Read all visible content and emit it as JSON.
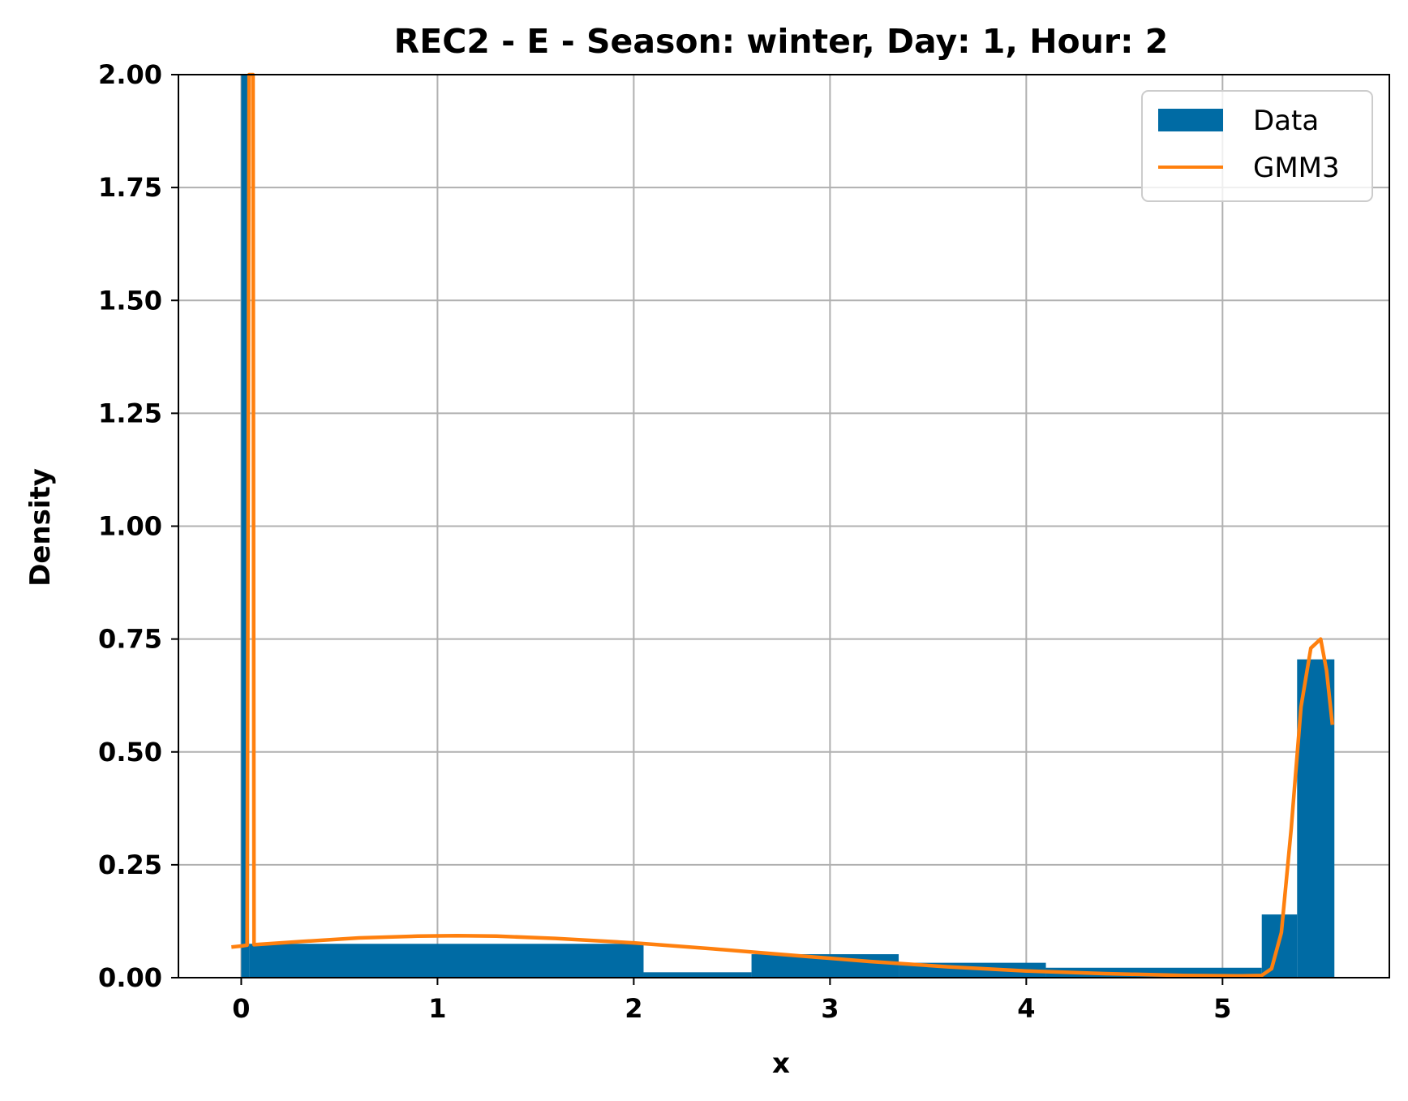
{
  "chart_data": {
    "type": "bar",
    "title": "REC2 - E - Season: winter, Day: 1, Hour: 2",
    "xlabel": "x",
    "ylabel": "Density",
    "xlim": [
      -0.32,
      5.85
    ],
    "ylim": [
      0,
      2.0
    ],
    "grid": true,
    "legend_position": "top-right",
    "xticks": [
      0,
      1,
      2,
      3,
      4,
      5
    ],
    "xtick_labels": [
      "0",
      "1",
      "2",
      "3",
      "4",
      "5"
    ],
    "yticks": [
      0,
      0.25,
      0.5,
      0.75,
      1.0,
      1.25,
      1.5,
      1.75,
      2.0
    ],
    "ytick_labels": [
      "0.00",
      "0.25",
      "0.50",
      "0.75",
      "1.00",
      "1.25",
      "1.50",
      "1.75",
      "2.00"
    ],
    "series": [
      {
        "name": "Data",
        "kind": "histogram",
        "color": "#006BA4",
        "bins": [
          {
            "x0": 0.0,
            "x1": 0.04,
            "value": 2.0
          },
          {
            "x0": 0.04,
            "x1": 2.05,
            "value": 0.075
          },
          {
            "x0": 2.05,
            "x1": 2.6,
            "value": 0.012
          },
          {
            "x0": 2.6,
            "x1": 3.35,
            "value": 0.052
          },
          {
            "x0": 3.35,
            "x1": 4.1,
            "value": 0.033
          },
          {
            "x0": 4.1,
            "x1": 5.2,
            "value": 0.022
          },
          {
            "x0": 5.2,
            "x1": 5.38,
            "value": 0.14
          },
          {
            "x0": 5.38,
            "x1": 5.57,
            "value": 0.705
          }
        ]
      },
      {
        "name": "GMM3",
        "kind": "line",
        "color": "#FF800E",
        "x": [
          -0.05,
          0.0,
          0.03,
          0.04,
          0.045,
          0.06,
          0.065,
          0.3,
          0.6,
          0.9,
          1.1,
          1.3,
          1.6,
          2.0,
          2.4,
          2.8,
          3.2,
          3.6,
          4.0,
          4.4,
          4.8,
          5.1,
          5.2,
          5.25,
          5.3,
          5.35,
          5.4,
          5.45,
          5.5,
          5.53,
          5.56
        ],
        "y": [
          0.068,
          0.07,
          0.072,
          2.0,
          2.0,
          2.0,
          0.073,
          0.08,
          0.088,
          0.092,
          0.093,
          0.092,
          0.087,
          0.077,
          0.064,
          0.05,
          0.036,
          0.024,
          0.015,
          0.009,
          0.005,
          0.004,
          0.005,
          0.02,
          0.1,
          0.33,
          0.6,
          0.73,
          0.75,
          0.68,
          0.56
        ]
      }
    ]
  }
}
